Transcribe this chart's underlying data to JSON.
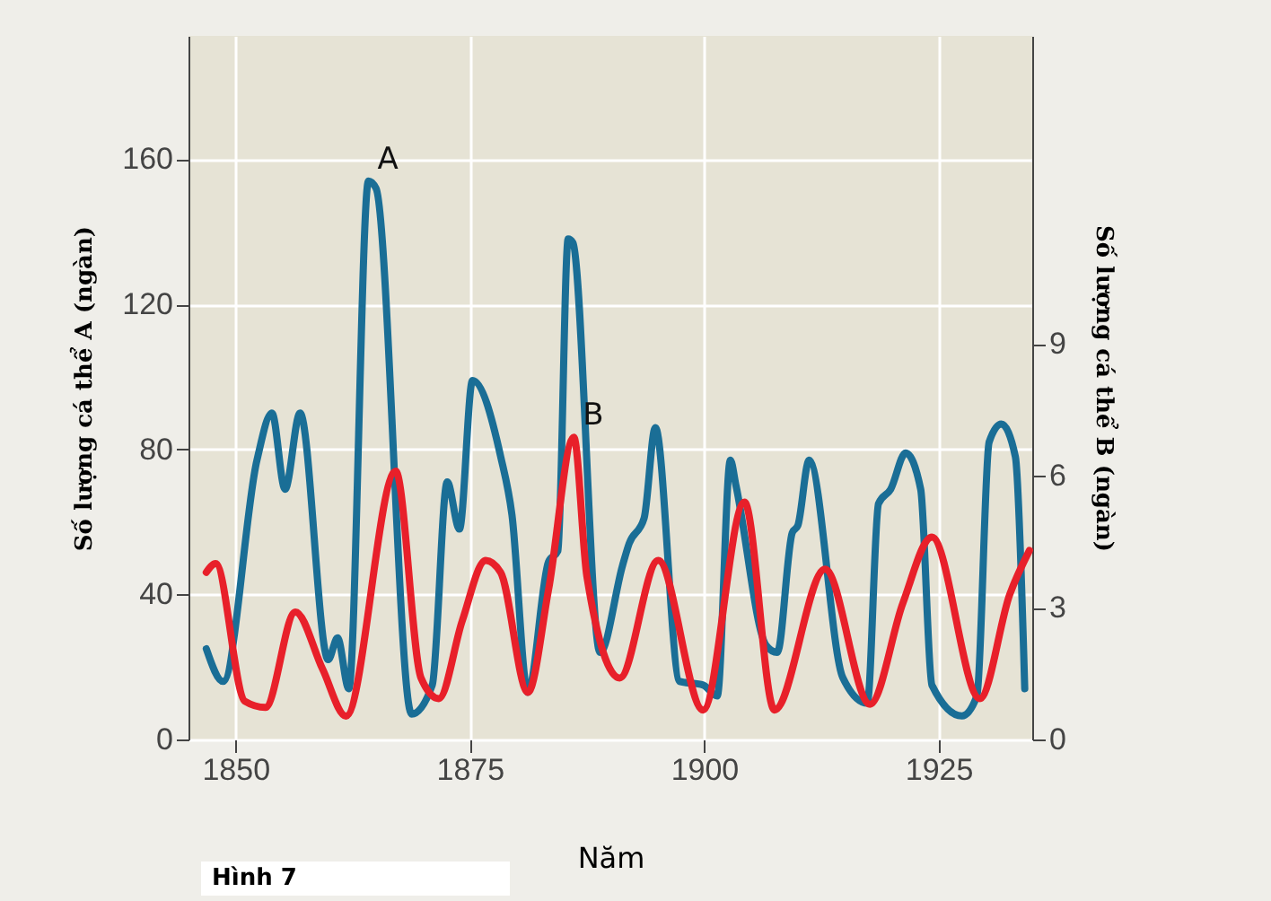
{
  "chart_data": {
    "type": "line",
    "xlabel": "Năm",
    "ylabel": "Số lượng cá thể A (ngàn)",
    "y2label": "Số lượng cá thể B (ngàn)",
    "xlim": [
      1845,
      1935
    ],
    "xticks": [
      1850,
      1875,
      1900,
      1925
    ],
    "ylim": [
      0,
      194
    ],
    "yticks": [
      0,
      40,
      80,
      120,
      160
    ],
    "y2lim": [
      0,
      16
    ],
    "y2ticks": [
      0,
      3,
      6,
      9
    ],
    "grid": true,
    "line_style": "solid",
    "marker": "none",
    "annotations": [
      "Hình 7"
    ],
    "series": [
      {
        "name": "A",
        "color": "#1a6e96",
        "x": [
          1846.9,
          1848.7,
          1852.3,
          1853.9,
          1855.3,
          1856.9,
          1859.9,
          1860.9,
          1862.1,
          1864.2,
          1865,
          1868.8,
          1871,
          1872.6,
          1873.9,
          1875.3,
          1878.3,
          1879.5,
          1881.2,
          1883.4,
          1884.4,
          1885.5,
          1886,
          1888.9,
          1891.3,
          1892,
          1893.6,
          1894.8,
          1897.4,
          1899.9,
          1901.4,
          1902.8,
          1903.4,
          1906.6,
          1907.8,
          1909.4,
          1910,
          1911.2,
          1914.8,
          1917.4,
          1918.6,
          1919.9,
          1921.5,
          1923.1,
          1924.3,
          1927.5,
          1929.1,
          1930.4,
          1931.7,
          1933.2,
          1934.2
        ],
        "values": [
          25,
          16,
          77,
          90,
          69,
          90,
          22,
          28,
          14,
          154,
          152,
          7,
          15,
          71,
          58,
          99,
          78,
          62,
          13,
          49,
          52,
          138,
          137,
          24,
          48,
          54,
          61,
          86,
          16,
          15,
          12,
          77,
          70,
          26,
          24,
          57,
          59,
          77,
          17,
          10,
          65,
          69,
          79,
          69,
          15,
          6.5,
          12,
          82,
          87,
          78,
          14
        ]
      },
      {
        "name": "B",
        "color": "#e8202a",
        "axis": "y2",
        "x": [
          1846.9,
          1847.9,
          1851,
          1853.2,
          1856.4,
          1859.3,
          1861.8,
          1867.1,
          1869.8,
          1871.7,
          1874.2,
          1876.7,
          1878.3,
          1881.2,
          1883.4,
          1886.1,
          1887.5,
          1891,
          1895.1,
          1899.9,
          1904.3,
          1907.5,
          1912.9,
          1917.7,
          1921.2,
          1924.3,
          1929.4,
          1932.6,
          1934.7
        ],
        "values": [
          3.8,
          4.0,
          0.87,
          0.73,
          2.9,
          1.6,
          0.53,
          6.1,
          1.4,
          0.93,
          2.7,
          4.07,
          3.8,
          1.07,
          3.4,
          6.87,
          3.7,
          1.4,
          4.07,
          0.67,
          5.4,
          0.67,
          3.87,
          0.8,
          3.1,
          4.6,
          0.93,
          3.3,
          4.3
        ]
      }
    ]
  }
}
